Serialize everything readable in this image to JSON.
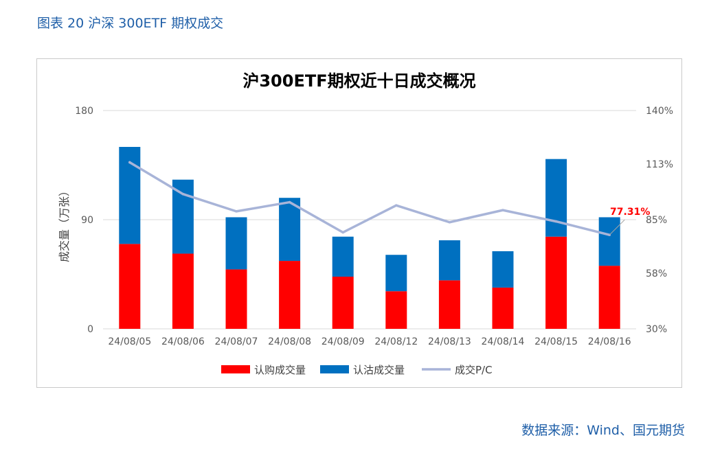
{
  "caption": "图表 20 沪深 300ETF 期权成交",
  "source": "数据来源：Wind、国元期货",
  "chart_data": {
    "type": "bar",
    "title": "沪300ETF期权近十日成交概况",
    "ylabel": "成交量（万张）",
    "ylim": [
      0,
      180
    ],
    "yticks": [
      "0",
      "90",
      "180"
    ],
    "y2lim": [
      30,
      140
    ],
    "y2ticks": [
      "30%",
      "58%",
      "85%",
      "113%",
      "140%"
    ],
    "categories": [
      "24/08/05",
      "24/08/06",
      "24/08/07",
      "24/08/08",
      "24/08/09",
      "24/08/12",
      "24/08/13",
      "24/08/14",
      "24/08/15",
      "24/08/16"
    ],
    "series": [
      {
        "name": "认购成交量",
        "type": "bar",
        "stack": true,
        "color": "#ff0000",
        "values": [
          70,
          62,
          49,
          56,
          43,
          31,
          40,
          34,
          76,
          52
        ]
      },
      {
        "name": "认沽成交量",
        "type": "bar",
        "stack": true,
        "color": "#0070c0",
        "values": [
          80,
          61,
          43,
          52,
          33,
          30,
          33,
          30,
          64,
          40
        ]
      },
      {
        "name": "成交P/C",
        "type": "line",
        "axis": "right",
        "color": "#a8b4d8",
        "values": [
          113.9,
          97.9,
          89.2,
          93.8,
          78.6,
          92.2,
          83.7,
          89.8,
          84.1,
          77.31
        ]
      }
    ],
    "annotation": {
      "text": "77.31%",
      "category": "24/08/16",
      "color": "#ff0000"
    },
    "grid": true,
    "legend": "bottom"
  }
}
